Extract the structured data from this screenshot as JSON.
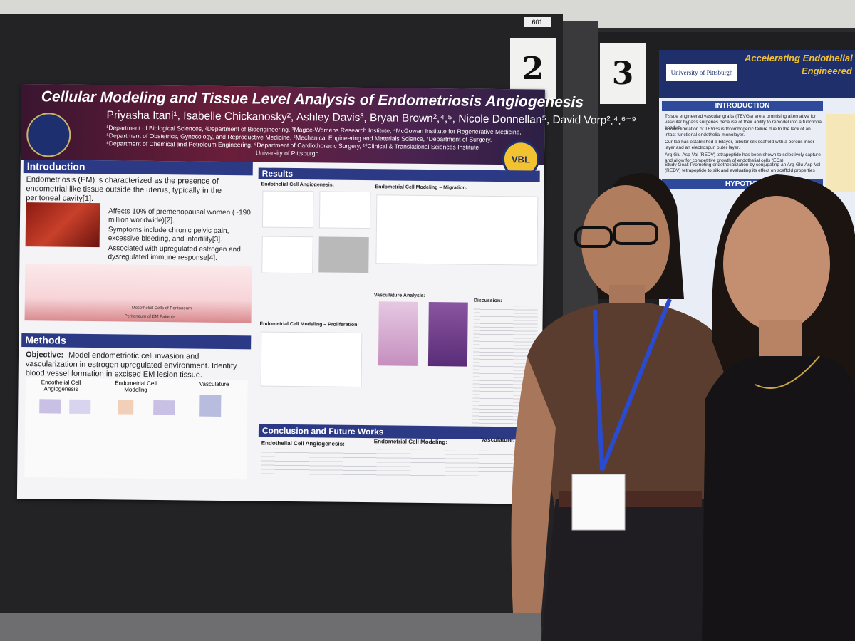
{
  "board_labels": {
    "room": "601",
    "left_number": "2",
    "right_number": "3"
  },
  "poster": {
    "title": "Cellular Modeling and Tissue Level Analysis of Endometriosis Angiogenesis",
    "authors": "Priyasha Itani¹, Isabelle Chickanosky², Ashley Davis³, Bryan Brown²,⁴,⁵, Nicole Donnellan⁵, David Vorp²,⁴,⁶⁻⁹",
    "affiliations": [
      "¹Department of Biological Sciences, ²Department of Bioengineering, ³Magee-Womens Research Institute, ⁴McGowan Institute for Regenerative Medicine,",
      "⁵Department of Obstetrics, Gynecology, and Reproductive Medicine, ⁶Mechanical Engineering and Materials Science, ⁷Department of Surgery,",
      "⁸Department of Chemical and Petroleum Engineering, ⁹Department of Cardiothoracic Surgery, ¹⁰Clinical & Translational Sciences Institute",
      "University of Pittsburgh"
    ],
    "lab_logo": "VBL",
    "introduction": {
      "heading": "Introduction",
      "lead": "Endometriosis (EM) is characterized as the presence of endometrial like tissue outside the uterus, typically in the peritoneal cavity[1].",
      "bullets": [
        "Affects 10% of premenopausal women (~190 million worldwide)[2].",
        "Symptoms include chronic pelvic pain, excessive bleeding, and infertility[3].",
        "Associated with upregulated estrogen and dysregulated immune response[4]."
      ],
      "figure_labels": [
        "Mesothelial Cells of Peritoneum",
        "Peritoneum of EM Patients"
      ]
    },
    "methods": {
      "heading": "Methods",
      "objective_label": "Objective:",
      "objective": "Model endometriotic cell invasion and vascularization in estrogen upregulated environment. Identify blood vessel formation in excised EM lesion tissue.",
      "columns": [
        "Endothelial Cell Angiogenesis",
        "Endometrial Cell Modeling",
        "Vasculature"
      ]
    },
    "results": {
      "heading": "Results",
      "subheadings": [
        "Endothelial Cell Angiogenesis:",
        "Endometrial Cell Modeling – Migration:",
        "Endometrial Cell Modeling – Proliferation:",
        "Vasculature Analysis:",
        "Discussion:"
      ]
    },
    "conclusion": {
      "heading": "Conclusion and Future Works",
      "columns": [
        "Endothelial Cell Angiogenesis:",
        "Endometrial Cell Modeling:",
        "Vasculature:"
      ]
    }
  },
  "right_poster": {
    "institution": "University of Pittsburgh",
    "title": "Accelerating Endothelial",
    "title_line2": "Engineered V",
    "heading": "INTRODUCTION",
    "bullets": [
      "Tissue engineered vascular grafts (TEVGs) are a promising alternative for vascular bypass surgeries because of their ability to remodel into a functional conduit.",
      "A main limitation of TEVGs is thrombogenic failure due to the lack of an intact functional endothelial monolayer.",
      "Our lab has established a bilayer, tubular silk scaffold with a porous inner layer and an electrospun outer layer.",
      "Arg-Glu-Asp-Val (REDV) tetrapeptide has been shown to selectively capture and allow for competitive growth of endothelial cells (ECs)."
    ],
    "study_goal": "Study Goal: Promoting endothelialization by conjugating an Arg-Glu-Asp-Val (REDV) tetrapeptide to silk and evaluating its effect on scaffold properties",
    "hypothesis_heading": "HYPOTHE"
  }
}
